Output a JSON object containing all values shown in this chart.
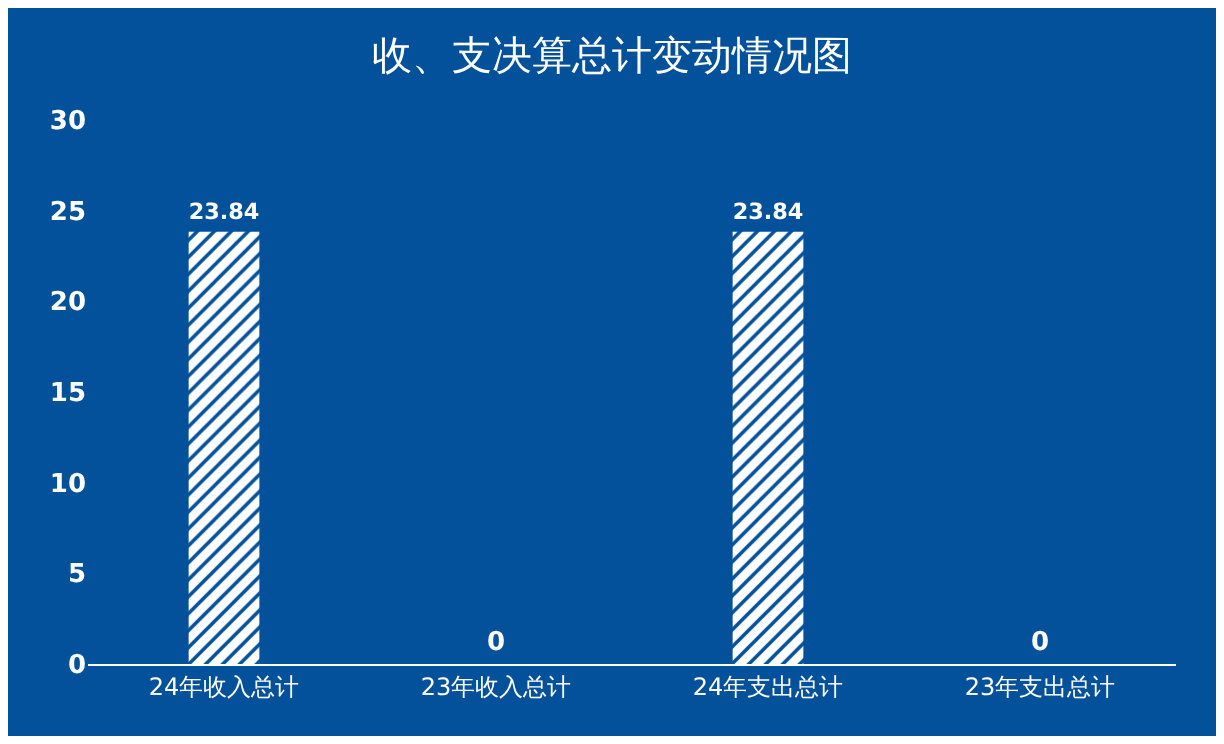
{
  "chart_data": {
    "type": "bar",
    "title": "收、支决算总计变动情况图",
    "categories": [
      "24年收入总计",
      "23年收入总计",
      "24年支出总计",
      "23年支出总计"
    ],
    "values": [
      23.84,
      0,
      23.84,
      0
    ],
    "color": "#ffffff",
    "ylim": [
      0,
      30
    ],
    "yticks": [
      0,
      5,
      10,
      15,
      20,
      25,
      30
    ],
    "data_labels": true
  }
}
